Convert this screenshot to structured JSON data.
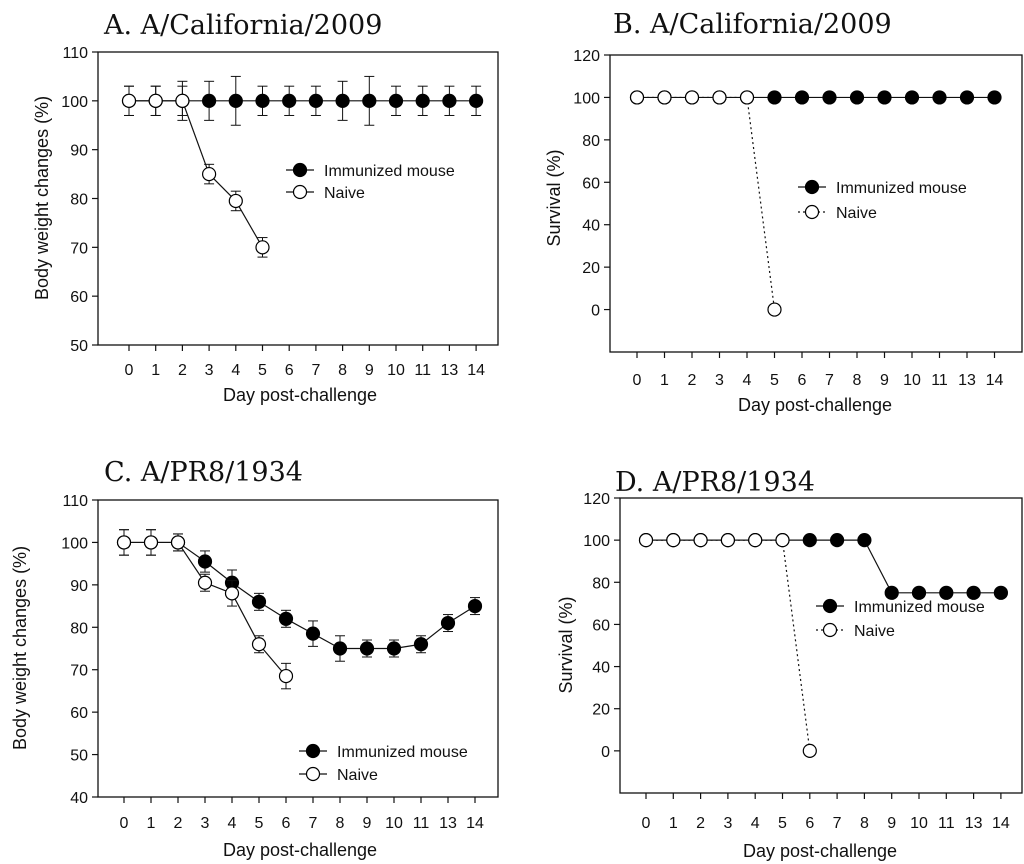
{
  "chart_data": [
    {
      "type": "line",
      "title": "A. A/California/2009",
      "xlabel": "Day post-challenge",
      "ylabel": "Body weight changes (%)",
      "categories": [
        "0",
        "1",
        "2",
        "3",
        "4",
        "5",
        "6",
        "7",
        "8",
        "9",
        "10",
        "11",
        "13",
        "14"
      ],
      "ylim": [
        50,
        110
      ],
      "yticks": [
        50,
        60,
        70,
        80,
        90,
        100,
        110
      ],
      "legend_position": "right",
      "series": [
        {
          "name": "Immunized mouse",
          "marker": "filled",
          "line": "solid",
          "values": [
            100,
            100,
            100,
            100,
            100,
            100,
            100,
            100,
            100,
            100,
            100,
            100,
            100,
            100
          ],
          "errors": [
            3,
            3,
            4,
            4,
            5,
            3,
            3,
            3,
            4,
            5,
            3,
            3,
            3,
            3
          ]
        },
        {
          "name": "Naive",
          "marker": "open",
          "line": "solid",
          "values": [
            100,
            100,
            100,
            85,
            79.5,
            70,
            null,
            null,
            null,
            null,
            null,
            null,
            null,
            null
          ],
          "errors": [
            3,
            3,
            3,
            2,
            2,
            2,
            null,
            null,
            null,
            null,
            null,
            null,
            null,
            null
          ]
        }
      ]
    },
    {
      "type": "line",
      "title": "B. A/California/2009",
      "xlabel": "Day post-challenge",
      "ylabel": "Survival (%)",
      "categories": [
        "0",
        "1",
        "2",
        "3",
        "4",
        "5",
        "6",
        "7",
        "8",
        "9",
        "10",
        "11",
        "13",
        "14"
      ],
      "ylim": [
        -20,
        120
      ],
      "yticks": [
        0,
        20,
        40,
        60,
        80,
        100,
        120
      ],
      "legend_position": "right",
      "series": [
        {
          "name": "Immunized mouse",
          "marker": "filled",
          "line": "solid",
          "values": [
            100,
            100,
            100,
            100,
            100,
            100,
            100,
            100,
            100,
            100,
            100,
            100,
            100,
            100
          ]
        },
        {
          "name": "Naive",
          "marker": "open",
          "line": "dotted",
          "values": [
            100,
            100,
            100,
            100,
            100,
            0,
            null,
            null,
            null,
            null,
            null,
            null,
            null,
            null
          ]
        }
      ]
    },
    {
      "type": "line",
      "title": "C. A/PR8/1934",
      "xlabel": "Day post-challenge",
      "ylabel": "Body weight changes (%)",
      "categories": [
        "0",
        "1",
        "2",
        "3",
        "4",
        "5",
        "6",
        "7",
        "8",
        "9",
        "10",
        "11",
        "13",
        "14"
      ],
      "ylim": [
        40,
        110
      ],
      "yticks": [
        40,
        50,
        60,
        70,
        80,
        90,
        100,
        110
      ],
      "legend_position": "bottom-right",
      "series": [
        {
          "name": "Immunized mouse",
          "marker": "filled",
          "line": "solid",
          "values": [
            100,
            100,
            100,
            95.5,
            90.5,
            86,
            82,
            78.5,
            75,
            75,
            75,
            76,
            81,
            85
          ],
          "errors": [
            3,
            3,
            2,
            2.5,
            3,
            2,
            2,
            3,
            3,
            2,
            2,
            2,
            2,
            2
          ]
        },
        {
          "name": "Naive",
          "marker": "open",
          "line": "solid",
          "values": [
            100,
            100,
            100,
            90.5,
            88,
            76,
            68.5,
            null,
            null,
            null,
            null,
            null,
            null,
            null
          ],
          "errors": [
            3,
            3,
            2,
            2,
            3,
            2,
            3,
            null,
            null,
            null,
            null,
            null,
            null,
            null
          ]
        }
      ]
    },
    {
      "type": "line",
      "title": "D. A/PR8/1934",
      "xlabel": "Day post-challenge",
      "ylabel": "Survival (%)",
      "categories": [
        "0",
        "1",
        "2",
        "3",
        "4",
        "5",
        "6",
        "7",
        "8",
        "9",
        "10",
        "11",
        "13",
        "14"
      ],
      "ylim": [
        -20,
        120
      ],
      "yticks": [
        0,
        20,
        40,
        60,
        80,
        100,
        120
      ],
      "legend_position": "right",
      "series": [
        {
          "name": "Immunized mouse",
          "marker": "filled",
          "line": "solid",
          "values": [
            100,
            100,
            100,
            100,
            100,
            100,
            100,
            100,
            100,
            75,
            75,
            75,
            75,
            75
          ]
        },
        {
          "name": "Naive",
          "marker": "open",
          "line": "dotted",
          "values": [
            100,
            100,
            100,
            100,
            100,
            100,
            0,
            null,
            null,
            null,
            null,
            null,
            null,
            null
          ]
        }
      ]
    }
  ]
}
